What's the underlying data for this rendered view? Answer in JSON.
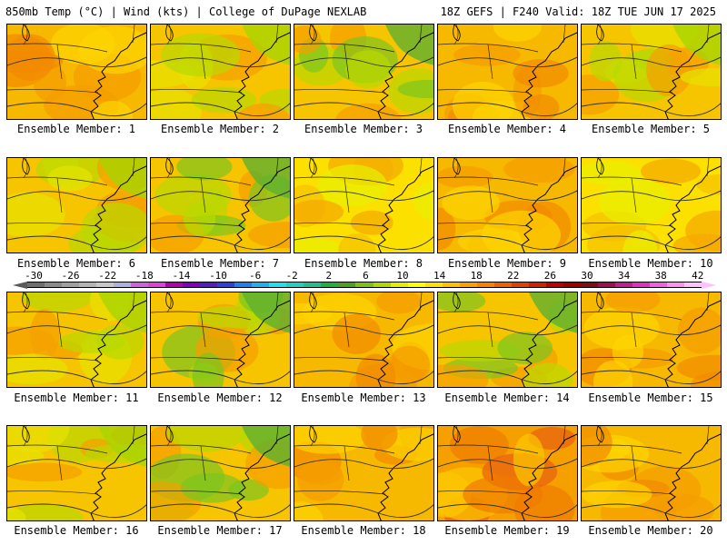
{
  "header": {
    "left": "850mb Temp (°C) | Wind (kts) | College of DuPage NEXLAB",
    "right": "18Z GEFS | F240 Valid: 18Z TUE JUN 17 2025"
  },
  "panels": [
    {
      "label": "Ensemble Member: 1",
      "palette": "warm"
    },
    {
      "label": "Ensemble Member: 2",
      "palette": "mixed"
    },
    {
      "label": "Ensemble Member: 3",
      "palette": "cool"
    },
    {
      "label": "Ensemble Member: 4",
      "palette": "warm"
    },
    {
      "label": "Ensemble Member: 5",
      "palette": "mixed"
    },
    {
      "label": "Ensemble Member: 6",
      "palette": "mixed"
    },
    {
      "label": "Ensemble Member: 7",
      "palette": "cool"
    },
    {
      "label": "Ensemble Member: 8",
      "palette": "yellow"
    },
    {
      "label": "Ensemble Member: 9",
      "palette": "warm"
    },
    {
      "label": "Ensemble Member: 10",
      "palette": "yellow"
    },
    {
      "label": "Ensemble Member: 11",
      "palette": "mixed"
    },
    {
      "label": "Ensemble Member: 12",
      "palette": "cool"
    },
    {
      "label": "Ensemble Member: 13",
      "palette": "warm"
    },
    {
      "label": "Ensemble Member: 14",
      "palette": "cool"
    },
    {
      "label": "Ensemble Member: 15",
      "palette": "warm"
    },
    {
      "label": "Ensemble Member: 16",
      "palette": "mixed"
    },
    {
      "label": "Ensemble Member: 17",
      "palette": "cool"
    },
    {
      "label": "Ensemble Member: 18",
      "palette": "warm"
    },
    {
      "label": "Ensemble Member: 19",
      "palette": "hot"
    },
    {
      "label": "Ensemble Member: 20",
      "palette": "warm"
    }
  ],
  "colorbar": {
    "labels": [
      "-30",
      "-26",
      "-22",
      "-18",
      "-14",
      "-10",
      "-6",
      "-2",
      "2",
      "6",
      "10",
      "14",
      "18",
      "22",
      "26",
      "30",
      "34",
      "38",
      "42"
    ],
    "colors": [
      "#6e6e6e",
      "#8a8a8a",
      "#a0a0a0",
      "#b4b4b4",
      "#c8c8c8",
      "#b0b0e0",
      "#d060e0",
      "#e040e0",
      "#b000b0",
      "#8000c0",
      "#5020c0",
      "#3040e0",
      "#2080f0",
      "#20b0f0",
      "#20e0f0",
      "#20d0c0",
      "#20c090",
      "#20b040",
      "#50a020",
      "#80c010",
      "#b0d800",
      "#e0f000",
      "#ffff00",
      "#ffe000",
      "#ffc000",
      "#ffa000",
      "#ff8000",
      "#f06000",
      "#e04000",
      "#d02000",
      "#c00000",
      "#a00000",
      "#801010",
      "#a01050",
      "#c02090",
      "#e030c0",
      "#f060e0",
      "#ff90f0",
      "#ffc0ff"
    ]
  }
}
